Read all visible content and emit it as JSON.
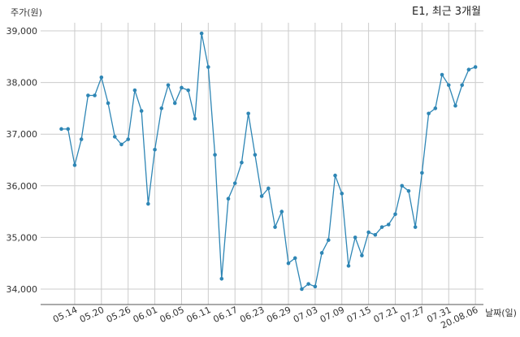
{
  "chart_data": {
    "type": "line",
    "title": "E1, 최근 3개월",
    "ylabel": "주가(원)",
    "xlabel": "날짜(일)",
    "ylim": [
      33700,
      39200
    ],
    "y_ticks": [
      34000,
      35000,
      36000,
      37000,
      38000,
      39000
    ],
    "y_tick_labels": [
      "34,000",
      "35,000",
      "36,000",
      "37,000",
      "38,000",
      "39,000"
    ],
    "x_tick_labels": [
      "05.14",
      "05.20",
      "05.26",
      "06.01",
      "06.05",
      "06.11",
      "06.17",
      "06.23",
      "06.29",
      "07.03",
      "07.09",
      "07.15",
      "07.21",
      "07.27",
      "07.31",
      "20.08.06"
    ],
    "x_tick_indices": [
      2,
      6,
      10,
      14,
      18,
      22,
      26,
      30,
      34,
      38,
      42,
      46,
      50,
      54,
      58,
      62
    ],
    "grid": true,
    "color": "#2e86b5",
    "series": [
      {
        "values": [
          37100,
          37100,
          36400,
          36900,
          37750,
          37750,
          38100,
          37600,
          36950,
          36800,
          36900,
          37850,
          37450,
          35650,
          36700,
          37500,
          37950,
          37600,
          37900,
          37850,
          37300,
          38950,
          38300,
          36600,
          34200,
          35750,
          36050,
          36450,
          37400,
          36600,
          35800,
          35950,
          35200,
          35500,
          34500,
          34600,
          34000,
          34100,
          34050,
          34700,
          34950,
          36200,
          35850,
          34450,
          35000,
          34650,
          35100,
          35050,
          35200,
          35250,
          35450,
          36000,
          35900,
          35200,
          36250,
          37400,
          37500,
          38150,
          37950,
          37550,
          37950,
          38250,
          38300
        ]
      }
    ]
  }
}
